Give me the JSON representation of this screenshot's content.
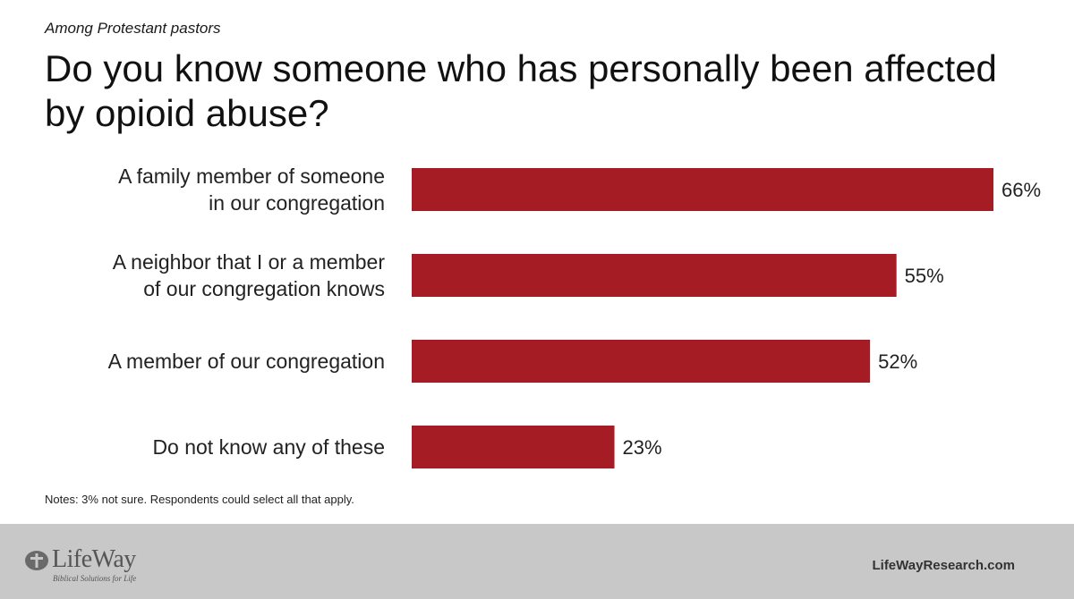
{
  "header": {
    "subtitle": "Among Protestant pastors",
    "title": "Do you know someone who has personally been affected by opioid abuse?"
  },
  "chart_data": {
    "type": "bar",
    "orientation": "horizontal",
    "categories": [
      [
        "A family member of someone",
        "in our congregation"
      ],
      [
        "A neighbor that I or a member",
        "of our congregation knows"
      ],
      [
        "A member of our congregation"
      ],
      [
        "Do not know any of these"
      ]
    ],
    "values": [
      66,
      55,
      52,
      23
    ],
    "value_labels": [
      "66%",
      "55%",
      "52%",
      "23%"
    ],
    "bar_color": "#a51c24",
    "xlim": [
      0,
      66
    ],
    "grid": false,
    "legend": "none"
  },
  "notes": "Notes: 3% not sure. Respondents could select all that apply.",
  "footer": {
    "logo_text": "LifeWay",
    "logo_tagline": "Biblical Solutions for Life",
    "website": "LifeWayResearch.com",
    "background_color": "#c9c8c8"
  }
}
